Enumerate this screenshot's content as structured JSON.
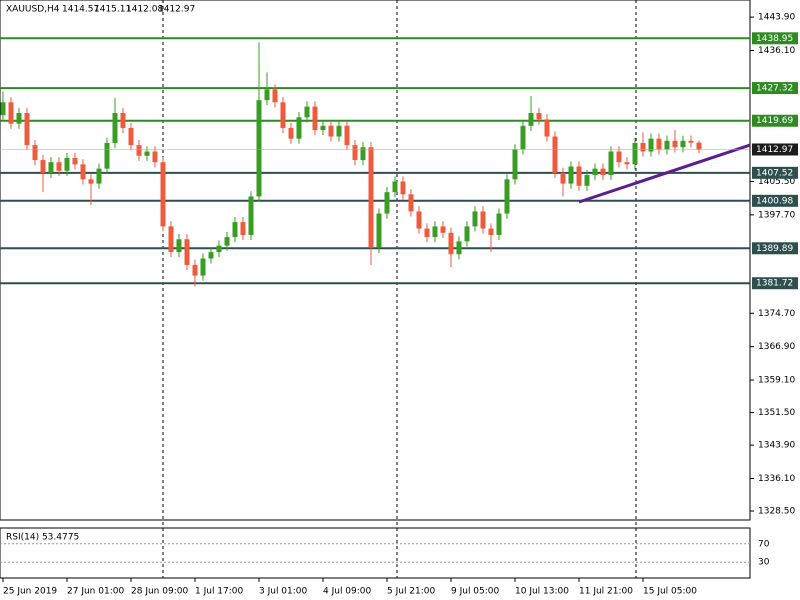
{
  "chart_data": {
    "type": "candlestick",
    "title": "XAUUSD,H4",
    "categories": [
      "25 Jun 2019",
      null,
      null,
      null,
      null,
      null,
      null,
      null,
      "27 Jun 01:00",
      null,
      null,
      null,
      null,
      null,
      null,
      null,
      "28 Jun 09:00",
      null,
      null,
      null,
      null,
      null,
      null,
      null,
      "1 Jul 17:00",
      null,
      null,
      null,
      null,
      null,
      null,
      null,
      "3 Jul 01:00",
      null,
      null,
      null,
      null,
      null,
      null,
      null,
      "4 Jul 09:00",
      null,
      null,
      null,
      null,
      null,
      null,
      null,
      "5 Jul 21:00",
      null,
      null,
      null,
      null,
      null,
      null,
      null,
      "9 Jul 05:00",
      null,
      null,
      null,
      null,
      null,
      null,
      null,
      "10 Jul 13:00",
      null,
      null,
      null,
      null,
      null,
      null,
      null,
      "11 Jul 21:00",
      null,
      null,
      null,
      null,
      null,
      null,
      null,
      "15 Jul 05:00",
      null,
      null,
      null,
      null,
      null,
      null,
      null
    ],
    "open": [
      1421.0,
      1424.0,
      1419.0,
      1421.5,
      1414.0,
      1410.5,
      1407.5,
      1410.0,
      1408.0,
      1411.0,
      1409.5,
      1406.0,
      1405.0,
      1408.5,
      1414.5,
      1421.5,
      1418.0,
      1414.0,
      1411.5,
      1412.5,
      1410.0,
      1395.0,
      1389.0,
      1392.0,
      1386.0,
      1383.5,
      1387.5,
      1389.0,
      1390.5,
      1392.5,
      1396.0,
      1393.0,
      1402.0,
      1424.5,
      1427.0,
      1424.0,
      1418.0,
      1415.5,
      1420.5,
      1423.0,
      1417.5,
      1418.5,
      1416.0,
      1418.5,
      1414.0,
      1410.5,
      1413.5,
      1390.0,
      1398.0,
      1403.0,
      1405.5,
      1402.5,
      1398.5,
      1394.5,
      1392.5,
      1395.0,
      1393.5,
      1388.5,
      1391.5,
      1395.0,
      1398.5,
      1394.5,
      1393.0,
      1398.0,
      1406.0,
      1413.0,
      1418.5,
      1421.5,
      1420.0,
      1416.0,
      1407.5,
      1405.0,
      1409.0,
      1404.5,
      1407.0,
      1408.5,
      1407.0,
      1412.5,
      1410.0,
      1409.5,
      1414.5,
      1412.5,
      1415.5,
      1413.0,
      1415.0,
      1413.5,
      1415.0,
      1414.57
    ],
    "high": [
      1426.5,
      1425.2,
      1422.7,
      1422.7,
      1415.2,
      1411.7,
      1411.2,
      1411.2,
      1412.2,
      1412.2,
      1410.7,
      1407.2,
      1409.7,
      1415.7,
      1425.0,
      1422.7,
      1419.2,
      1415.2,
      1413.7,
      1413.7,
      1411.2,
      1396.2,
      1393.2,
      1393.2,
      1387.2,
      1388.7,
      1390.2,
      1391.7,
      1393.7,
      1397.2,
      1397.2,
      1403.2,
      1438.0,
      1431.0,
      1428.2,
      1425.2,
      1419.2,
      1421.7,
      1424.2,
      1424.2,
      1419.7,
      1419.7,
      1419.7,
      1419.7,
      1415.2,
      1414.7,
      1414.7,
      1399.2,
      1404.2,
      1406.7,
      1406.7,
      1403.7,
      1399.7,
      1395.7,
      1396.2,
      1396.2,
      1394.7,
      1392.7,
      1396.2,
      1399.7,
      1399.7,
      1395.7,
      1399.2,
      1407.2,
      1414.2,
      1419.7,
      1425.5,
      1422.7,
      1421.2,
      1417.2,
      1408.7,
      1410.2,
      1410.2,
      1408.2,
      1409.7,
      1409.7,
      1413.7,
      1413.7,
      1411.2,
      1415.7,
      1417.0,
      1416.7,
      1416.7,
      1416.2,
      1417.5,
      1416.2,
      1416.2,
      1415.11
    ],
    "low": [
      1419.8,
      1417.8,
      1417.8,
      1412.8,
      1409.3,
      1403.0,
      1406.3,
      1406.8,
      1406.8,
      1408.3,
      1404.8,
      1400.0,
      1403.8,
      1407.3,
      1413.3,
      1416.8,
      1412.8,
      1410.3,
      1410.3,
      1408.8,
      1393.8,
      1387.8,
      1387.8,
      1384.8,
      1381.0,
      1382.3,
      1386.3,
      1387.8,
      1389.3,
      1391.3,
      1391.8,
      1391.8,
      1400.8,
      1423.3,
      1422.8,
      1416.8,
      1414.3,
      1414.3,
      1419.3,
      1416.3,
      1416.3,
      1414.8,
      1414.8,
      1412.8,
      1409.3,
      1409.3,
      1386.0,
      1388.8,
      1396.8,
      1401.8,
      1401.3,
      1397.3,
      1393.3,
      1391.3,
      1391.3,
      1392.3,
      1385.5,
      1387.3,
      1390.3,
      1393.8,
      1393.3,
      1389.0,
      1391.8,
      1396.8,
      1404.8,
      1411.8,
      1417.3,
      1418.8,
      1414.8,
      1406.3,
      1402.0,
      1403.8,
      1403.3,
      1403.3,
      1405.8,
      1405.8,
      1405.8,
      1408.8,
      1408.3,
      1408.3,
      1411.3,
      1411.3,
      1411.8,
      1411.8,
      1412.3,
      1412.3,
      1413.4,
      1412.08
    ],
    "close": [
      1424.0,
      1419.0,
      1421.5,
      1414.0,
      1410.5,
      1407.5,
      1410.0,
      1408.0,
      1411.0,
      1409.5,
      1406.0,
      1405.0,
      1408.5,
      1414.5,
      1421.5,
      1418.0,
      1414.0,
      1411.5,
      1412.5,
      1410.0,
      1395.0,
      1389.0,
      1392.0,
      1386.0,
      1383.5,
      1387.5,
      1389.0,
      1390.5,
      1392.5,
      1396.0,
      1393.0,
      1402.0,
      1424.5,
      1427.0,
      1424.0,
      1418.0,
      1415.5,
      1420.5,
      1423.0,
      1417.5,
      1418.5,
      1416.0,
      1418.5,
      1414.0,
      1410.5,
      1413.5,
      1390.0,
      1398.0,
      1403.0,
      1405.5,
      1402.5,
      1398.5,
      1394.5,
      1392.5,
      1395.0,
      1393.5,
      1388.5,
      1391.5,
      1395.0,
      1398.5,
      1394.5,
      1393.0,
      1398.0,
      1406.0,
      1413.0,
      1418.5,
      1421.5,
      1420.0,
      1416.0,
      1407.5,
      1405.0,
      1409.0,
      1404.5,
      1407.0,
      1408.5,
      1407.0,
      1412.5,
      1410.0,
      1409.5,
      1414.5,
      1412.5,
      1415.5,
      1413.0,
      1415.0,
      1413.5,
      1415.0,
      1414.57,
      1412.97
    ],
    "up_color": "#3a9d23",
    "down_color": "#ee5a3c",
    "ylim": [
      1326.4,
      1447.9
    ],
    "yticks": [
      {
        "value": 1443.9,
        "label": "1443.90"
      },
      {
        "value": 1436.1,
        "label": "1436.10"
      },
      {
        "value": 1405.5,
        "label": "1405.50"
      },
      {
        "value": 1397.7,
        "label": "1397.70"
      },
      {
        "value": 1374.7,
        "label": "1374.70"
      },
      {
        "value": 1366.9,
        "label": "1366.90"
      },
      {
        "value": 1359.1,
        "label": "1359.10"
      },
      {
        "value": 1351.5,
        "label": "1351.50"
      },
      {
        "value": 1343.9,
        "label": "1343.90"
      },
      {
        "value": 1336.1,
        "label": "1336.10"
      },
      {
        "value": 1328.5,
        "label": "1328.50"
      }
    ],
    "levels": [
      {
        "value": 1438.95,
        "color": "#2e8b22"
      },
      {
        "value": 1427.32,
        "color": "#2e8b22"
      },
      {
        "value": 1419.69,
        "color": "#2e8b22"
      },
      {
        "value": 1407.52,
        "color": "#2f4f4f"
      },
      {
        "value": 1400.98,
        "color": "#2f4f4f"
      },
      {
        "value": 1389.89,
        "color": "#2f4f4f"
      },
      {
        "value": 1381.72,
        "color": "#2f4f4f"
      }
    ],
    "trendline": {
      "x": [
        72,
        93.4
      ],
      "y": [
        1400.7,
        1414.0
      ],
      "color": "#5b1f8f"
    },
    "rsi": {
      "label": "RSI(14) 53.4775",
      "ylim": [
        0,
        100
      ],
      "yticks": [
        70,
        30
      ]
    }
  }
}
